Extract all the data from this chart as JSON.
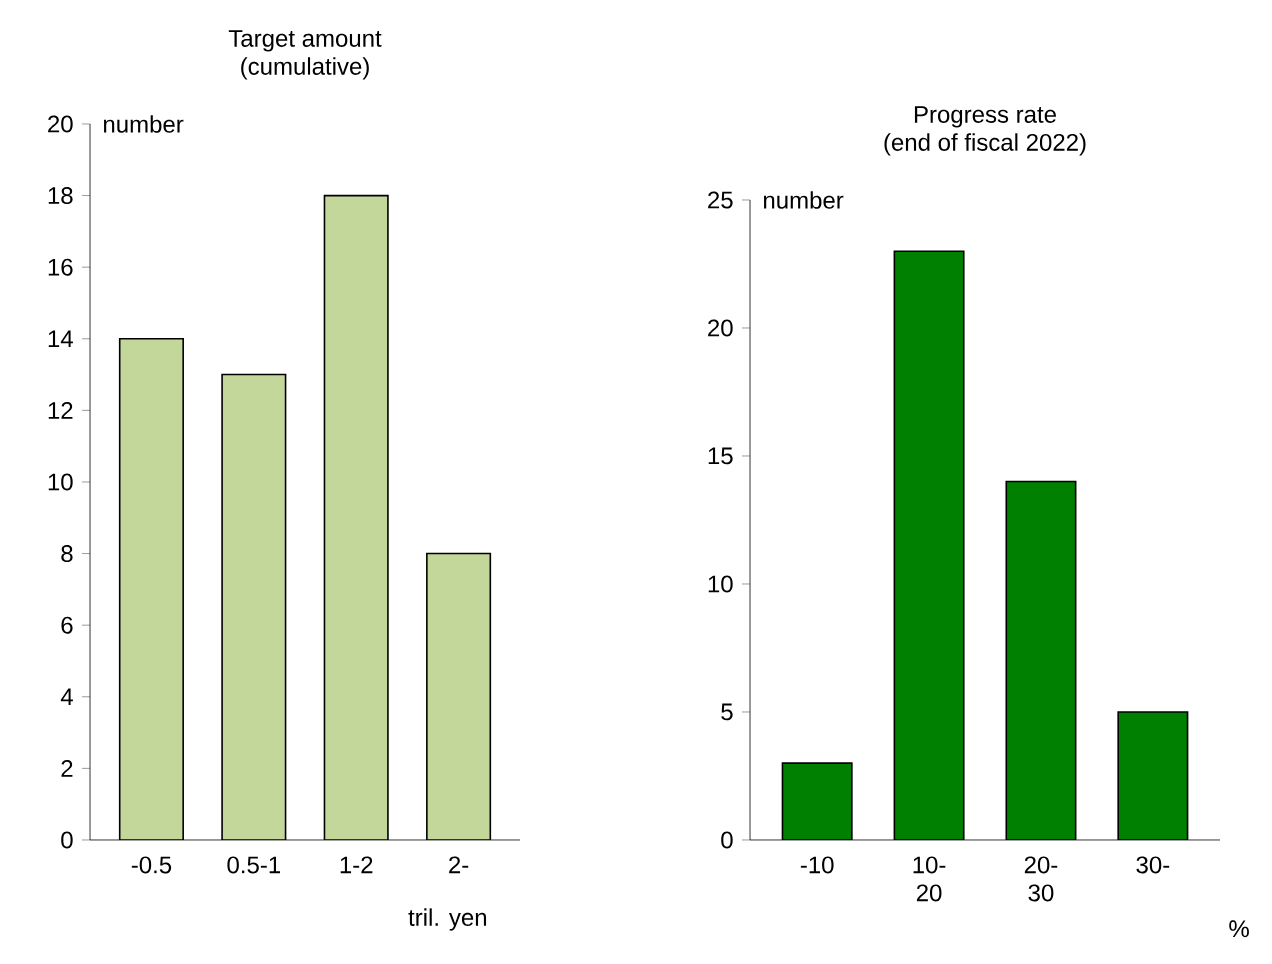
{
  "chart_data": [
    {
      "type": "bar",
      "title": "Target amount",
      "subtitle": "(cumulative)",
      "categories": [
        "-0.5",
        "0.5-1",
        "1-2",
        "2-"
      ],
      "values": [
        14,
        13,
        18,
        8
      ],
      "color": "#c4d79b",
      "ylim": [
        0,
        20
      ],
      "yticks": [
        0,
        2,
        4,
        6,
        8,
        10,
        12,
        14,
        16,
        18,
        20
      ],
      "ylabel": "number",
      "xlabel": "tril. yen"
    },
    {
      "type": "bar",
      "title": "Progress rate",
      "subtitle": "(end of fiscal 2022)",
      "categories": [
        "-10",
        "10-20",
        "20-30",
        "30-"
      ],
      "values": [
        3,
        23,
        14,
        5
      ],
      "color": "#008000",
      "ylim": [
        0,
        25
      ],
      "yticks": [
        0,
        5,
        10,
        15,
        20,
        25
      ],
      "ylabel": "number",
      "xlabel": "%"
    }
  ]
}
